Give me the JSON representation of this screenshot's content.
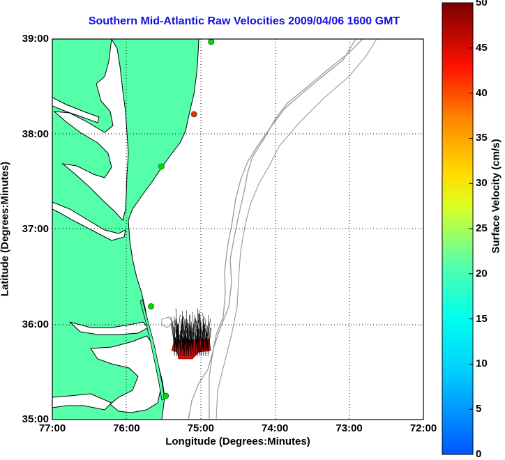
{
  "title": "Southern Mid-Atlantic Raw Velocities 2009/04/06 1600 GMT",
  "xlabel": "Longitude (Degrees:Minutes)",
  "ylabel": "Latitude (Degrees:Minutes)",
  "colorbar": {
    "label": "Surface Velocity (cm/s)",
    "ticks": [
      "50",
      "45",
      "40",
      "35",
      "30",
      "25",
      "20",
      "15",
      "10",
      "5",
      "0"
    ],
    "range": [
      0,
      50
    ]
  },
  "x_ticks": [
    "77:00",
    "76:00",
    "75:00",
    "74:00",
    "73:00",
    "72:00"
  ],
  "y_ticks": [
    "39:00",
    "38:00",
    "37:00",
    "36:00",
    "35:00"
  ],
  "colors": {
    "land": "#55ffaa",
    "coast": "#000000",
    "bathymetry": "#999999",
    "title": "#1010e0",
    "site_active": "#00dd00",
    "site_highlight": "#ff2200",
    "vector_patch": "#cc1111"
  },
  "map": {
    "lon_range": [
      "77:00",
      "72:00"
    ],
    "lat_range": [
      "35:00",
      "39:00"
    ],
    "grid": true
  },
  "sites": [
    {
      "lon": -74.86,
      "lat": 38.97,
      "status": "active"
    },
    {
      "lon": -75.09,
      "lat": 38.21,
      "status": "highlight"
    },
    {
      "lon": -75.53,
      "lat": 37.66,
      "status": "active"
    },
    {
      "lon": -75.67,
      "lat": 36.19,
      "status": "active"
    },
    {
      "lon": -75.47,
      "lat": 35.25,
      "status": "active"
    }
  ]
}
